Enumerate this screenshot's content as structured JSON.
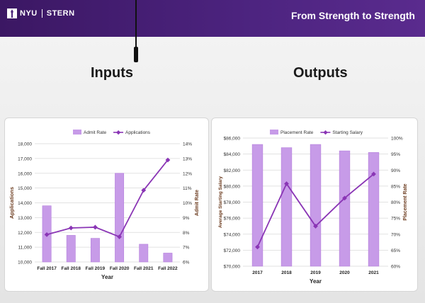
{
  "header": {
    "logo_left": "NYU",
    "logo_right": "STERN",
    "tagline": "From Strength to Strength",
    "bg": "#4a2279"
  },
  "sections": {
    "inputs_title": "Inputs",
    "outputs_title": "Outputs"
  },
  "colors": {
    "bar": "#c79be8",
    "bar_stroke": "#b47fdc",
    "line": "#8a35b5"
  },
  "chart_data": [
    {
      "type": "bar",
      "categories": [
        "Fall 2017",
        "Fall 2018",
        "Fall 2019",
        "Fall 2020",
        "Fall 2021",
        "Fall 2022"
      ],
      "series": [
        {
          "name": "Admit Rate",
          "type": "bar",
          "axis": "right",
          "values": [
            9.8,
            7.8,
            7.6,
            12.0,
            7.2,
            6.6
          ]
        },
        {
          "name": "Applications",
          "type": "line",
          "axis": "left",
          "values": [
            11850,
            12300,
            12350,
            11700,
            14850,
            16900
          ]
        }
      ],
      "xlabel": "Year",
      "ylabel": "Applications",
      "y2label": "Admit Rate",
      "ylim": [
        10000,
        18000
      ],
      "y_ticks": [
        "10,000",
        "11,000",
        "12,000",
        "13,000",
        "14,000",
        "15,000",
        "16,000",
        "17,000",
        "18,000"
      ],
      "y2lim": [
        6,
        14
      ],
      "y2_ticks": [
        "6%",
        "7%",
        "8%",
        "9%",
        "10%",
        "11%",
        "12%",
        "13%",
        "14%"
      ],
      "legend": "top"
    },
    {
      "type": "bar",
      "categories": [
        "2017",
        "2018",
        "2019",
        "2020",
        "2021"
      ],
      "series": [
        {
          "name": "Placement Rate",
          "type": "bar",
          "axis": "right",
          "values": [
            98,
            97,
            98,
            96,
            95.5
          ]
        },
        {
          "name": "Starting Salary",
          "type": "line",
          "axis": "left",
          "values": [
            72400,
            80300,
            75000,
            78500,
            81500
          ]
        }
      ],
      "xlabel": "Year",
      "ylabel": "Average Starting Salary",
      "y2label": "Placement Rate",
      "ylim": [
        70000,
        86000
      ],
      "y_ticks": [
        "$70,000",
        "$72,000",
        "$74,000",
        "$76,000",
        "$78,000",
        "$80,000",
        "$82,000",
        "$84,000",
        "$86,000"
      ],
      "y2lim": [
        60,
        100
      ],
      "y2_ticks": [
        "60%",
        "65%",
        "70%",
        "75%",
        "80%",
        "85%",
        "90%",
        "95%",
        "100%"
      ],
      "legend": "top"
    }
  ]
}
